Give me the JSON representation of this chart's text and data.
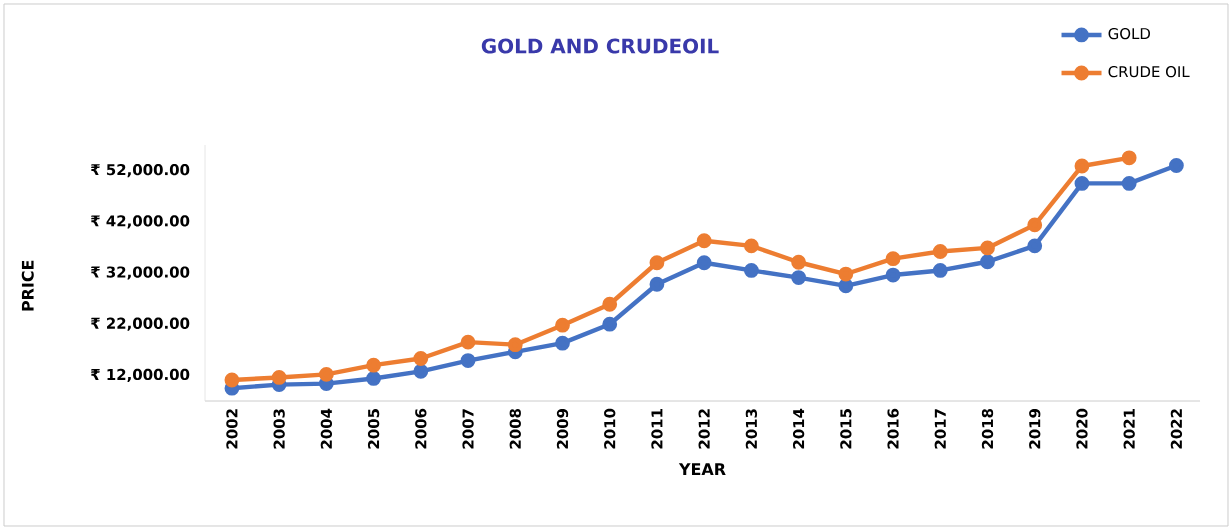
{
  "chart_data": {
    "type": "line",
    "title": "GOLD AND CRUDEOIL",
    "xlabel": "YEAR",
    "ylabel": "PRICE",
    "categories": [
      "2002",
      "2003",
      "2004",
      "2005",
      "2006",
      "2007",
      "2008",
      "2009",
      "2010",
      "2011",
      "2012",
      "2013",
      "2014",
      "2015",
      "2016",
      "2017",
      "2018",
      "2019",
      "2020",
      "2021",
      "2022"
    ],
    "series": [
      {
        "name": "GOLD",
        "color": "#4472c4",
        "values": [
          9500,
          10200,
          10400,
          11400,
          12800,
          14900,
          16600,
          18300,
          22000,
          29800,
          34000,
          32500,
          31100,
          29500,
          31600,
          32500,
          34200,
          37300,
          49500,
          49500,
          53000
        ]
      },
      {
        "name": "CRUDE OIL",
        "color": "#ed7d31",
        "values": [
          11100,
          11600,
          12200,
          14000,
          15300,
          18500,
          18000,
          21800,
          25900,
          34000,
          38300,
          37300,
          34100,
          31800,
          34800,
          36200,
          36900,
          41400,
          52900,
          54500,
          null
        ]
      }
    ],
    "yticks": [
      {
        "value": 12000,
        "label": "₹ 12,000.00"
      },
      {
        "value": 22000,
        "label": "₹ 22,000.00"
      },
      {
        "value": 32000,
        "label": "₹ 32,000.00"
      },
      {
        "value": 42000,
        "label": "₹ 42,000.00"
      },
      {
        "value": 52000,
        "label": "₹ 52,000.00"
      }
    ],
    "ylim": [
      7000,
      57000
    ],
    "legend": "top right",
    "marker": "circle",
    "line_style": "solid",
    "grid": false
  }
}
